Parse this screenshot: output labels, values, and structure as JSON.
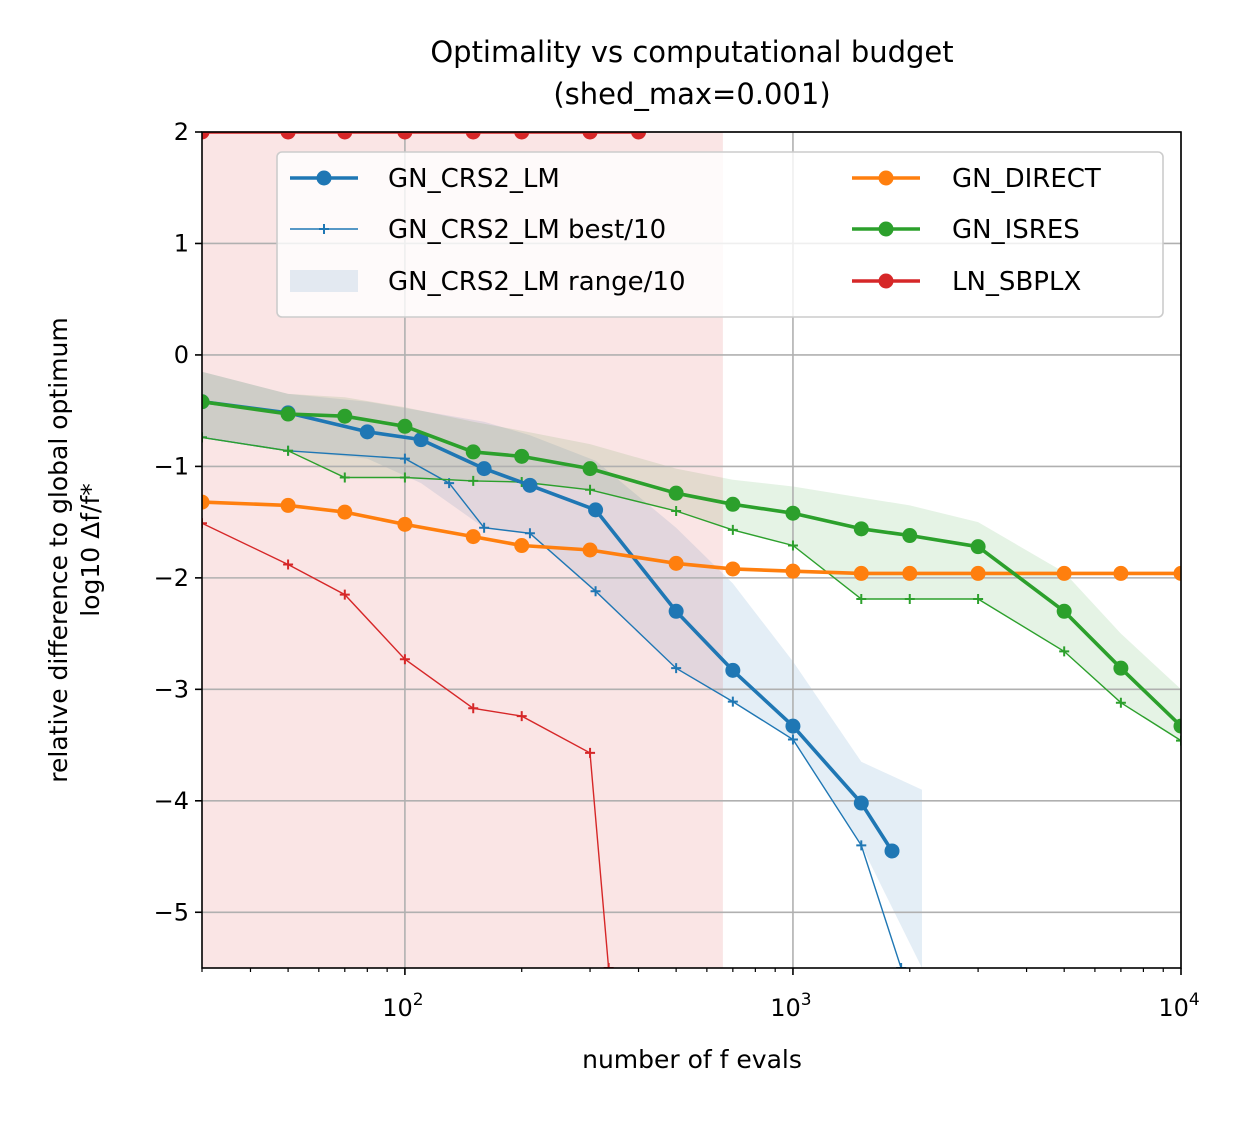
{
  "chart_data": {
    "type": "line",
    "title_line1": "Optimality vs computational budget",
    "title_line2": "(shed_max=0.001)",
    "xlabel": "number of f evals",
    "ylabel_line1": "relative difference to global optimum",
    "ylabel_line2": "log10 Δf/f*",
    "xscale": "log",
    "xlim": [
      30,
      10000
    ],
    "ylim": [
      -5.5,
      2
    ],
    "grid": true,
    "legend_position": "top-right",
    "x_ticks": [
      100,
      1000,
      10000
    ],
    "x_tick_labels": [
      {
        "base": "10",
        "exp": "2"
      },
      {
        "base": "10",
        "exp": "3"
      },
      {
        "base": "10",
        "exp": "4"
      }
    ],
    "y_ticks": [
      2,
      1,
      0,
      -1,
      -2,
      -3,
      -4,
      -5
    ],
    "y_tick_labels": [
      "2",
      "1",
      "0",
      "−1",
      "−2",
      "−3",
      "−4",
      "−5"
    ],
    "legend": [
      {
        "label": "GN_CRS2_LM",
        "kind": "line-marker",
        "color": "#1f77b4"
      },
      {
        "label": "GN_CRS2_LM best/10",
        "kind": "thin-plus",
        "color": "#1f77b4"
      },
      {
        "label": "GN_CRS2_LM range/10",
        "kind": "band",
        "color": "#1f77b4"
      },
      {
        "label": "GN_DIRECT",
        "kind": "line-marker",
        "color": "#ff7f0e"
      },
      {
        "label": "GN_ISRES",
        "kind": "line-marker",
        "color": "#2ca02c"
      },
      {
        "label": "LN_SBPLX",
        "kind": "line-marker",
        "color": "#d62728"
      }
    ],
    "series": [
      {
        "name": "GN_CRS2_LM",
        "color": "#1f77b4",
        "x": [
          30,
          50,
          80,
          110,
          160,
          210,
          310,
          500,
          700,
          1000,
          1500,
          1800
        ],
        "y": [
          -0.42,
          -0.52,
          -0.69,
          -0.76,
          -1.02,
          -1.17,
          -1.39,
          -2.3,
          -2.83,
          -3.33,
          -4.02,
          -4.45
        ],
        "best_x": [
          30,
          50,
          100,
          130,
          160,
          210,
          310,
          500,
          700,
          1000,
          1500,
          1900
        ],
        "best_y": [
          -0.74,
          -0.86,
          -0.93,
          -1.15,
          -1.55,
          -1.6,
          -2.12,
          -2.81,
          -3.11,
          -3.45,
          -4.4,
          -5.5
        ],
        "band_x": [
          30,
          50,
          80,
          110,
          160,
          210,
          310,
          500,
          700,
          1000,
          1500,
          2150
        ],
        "band_low": [
          -0.74,
          -0.86,
          -0.93,
          -1.15,
          -1.55,
          -1.6,
          -2.12,
          -2.81,
          -3.11,
          -3.45,
          -4.4,
          -5.5
        ],
        "band_high": [
          -0.15,
          -0.35,
          -0.42,
          -0.5,
          -0.6,
          -0.72,
          -0.95,
          -1.55,
          -2.05,
          -2.75,
          -3.65,
          -3.9
        ]
      },
      {
        "name": "GN_DIRECT",
        "color": "#ff7f0e",
        "x": [
          30,
          50,
          70,
          100,
          150,
          200,
          300,
          500,
          700,
          1000,
          1500,
          2000,
          3000,
          5000,
          7000,
          10000
        ],
        "y": [
          -1.32,
          -1.35,
          -1.41,
          -1.52,
          -1.63,
          -1.71,
          -1.75,
          -1.87,
          -1.92,
          -1.94,
          -1.96,
          -1.96,
          -1.96,
          -1.96,
          -1.96,
          -1.96
        ],
        "best_x": [
          30,
          50,
          70,
          100,
          150,
          200,
          300,
          500,
          700,
          1000,
          1500,
          2000,
          3000,
          5000,
          7000,
          10000
        ],
        "best_y": [
          -1.32,
          -1.35,
          -1.41,
          -1.52,
          -1.63,
          -1.71,
          -1.75,
          -1.87,
          -1.92,
          -1.94,
          -1.96,
          -1.96,
          -1.96,
          -1.96,
          -1.96,
          -1.96
        ],
        "band_low": [
          -1.32,
          -1.35,
          -1.41,
          -1.52,
          -1.63,
          -1.71,
          -1.75,
          -1.87,
          -1.92,
          -1.94,
          -1.96,
          -1.96,
          -1.96,
          -1.96,
          -1.96,
          -1.96
        ],
        "band_high": [
          -1.32,
          -1.35,
          -1.41,
          -1.52,
          -1.63,
          -1.71,
          -1.75,
          -1.87,
          -1.92,
          -1.94,
          -1.96,
          -1.96,
          -1.96,
          -1.96,
          -1.96,
          -1.96
        ]
      },
      {
        "name": "GN_ISRES",
        "color": "#2ca02c",
        "x": [
          30,
          50,
          70,
          100,
          150,
          200,
          300,
          500,
          700,
          1000,
          1500,
          2000,
          3000,
          5000,
          7000,
          10000
        ],
        "y": [
          -0.42,
          -0.53,
          -0.55,
          -0.64,
          -0.87,
          -0.91,
          -1.02,
          -1.24,
          -1.34,
          -1.42,
          -1.56,
          -1.62,
          -1.72,
          -2.3,
          -2.81,
          -3.33
        ],
        "best_x": [
          30,
          50,
          70,
          100,
          150,
          200,
          300,
          500,
          700,
          1000,
          1500,
          2000,
          3000,
          5000,
          7000,
          10000
        ],
        "best_y": [
          -0.74,
          -0.86,
          -1.1,
          -1.1,
          -1.13,
          -1.14,
          -1.21,
          -1.4,
          -1.57,
          -1.71,
          -2.19,
          -2.19,
          -2.19,
          -2.66,
          -3.12,
          -3.46
        ],
        "band_low": [
          -0.74,
          -0.86,
          -1.1,
          -1.1,
          -1.13,
          -1.14,
          -1.21,
          -1.4,
          -1.57,
          -1.71,
          -2.19,
          -2.19,
          -2.19,
          -2.66,
          -3.12,
          -3.46
        ],
        "band_high": [
          -0.15,
          -0.35,
          -0.38,
          -0.47,
          -0.6,
          -0.68,
          -0.8,
          -1.02,
          -1.12,
          -1.18,
          -1.28,
          -1.35,
          -1.5,
          -1.95,
          -2.5,
          -3.0
        ]
      },
      {
        "name": "LN_SBPLX",
        "color": "#d62728",
        "x": [
          30,
          50,
          70,
          100,
          150,
          200,
          300,
          400
        ],
        "y": [
          2,
          2,
          2,
          2,
          2,
          2,
          2,
          2
        ],
        "best_x": [
          30,
          50,
          70,
          100,
          150,
          200,
          300,
          335
        ],
        "best_y": [
          -1.51,
          -1.88,
          -2.15,
          -2.73,
          -3.17,
          -3.24,
          -3.57,
          -5.5
        ],
        "band_x": [
          30,
          660
        ],
        "band_low": [
          -5.5,
          -5.5
        ],
        "band_high": [
          2,
          2
        ]
      }
    ]
  }
}
